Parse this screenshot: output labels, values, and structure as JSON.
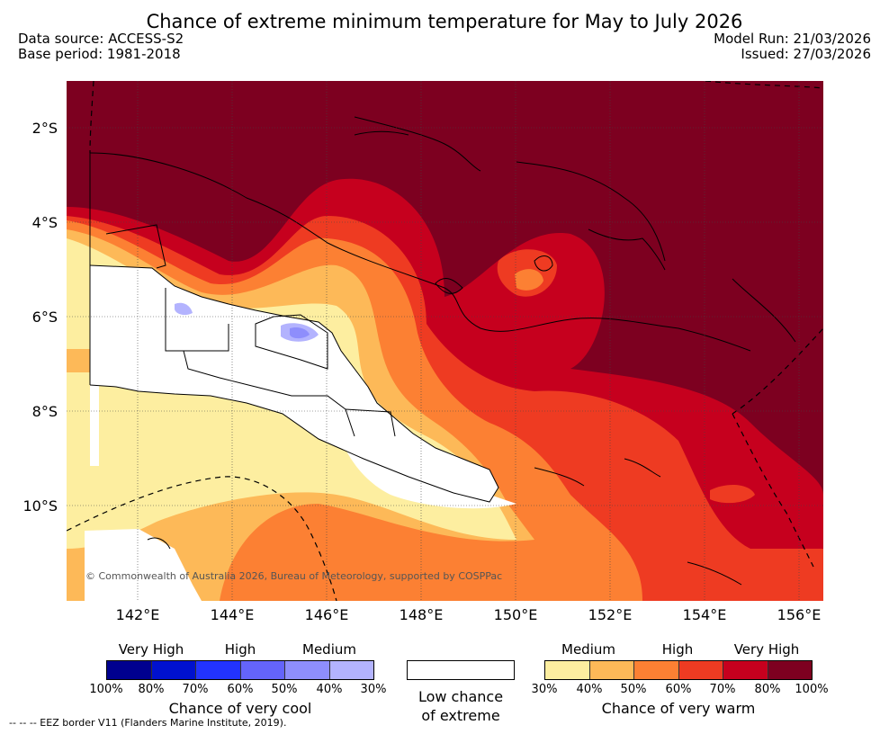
{
  "header": {
    "title": "Chance of extreme minimum temperature for May to July 2026",
    "data_source": "Data source: ACCESS-S2",
    "base_period": "Base period: 1981-2018",
    "model_run": "Model Run: 21/03/2026",
    "issued": "Issued: 27/03/2026"
  },
  "map": {
    "lat_labels": [
      "2°S",
      "4°S",
      "6°S",
      "8°S",
      "10°S"
    ],
    "lon_labels": [
      "142°E",
      "144°E",
      "146°E",
      "148°E",
      "150°E",
      "152°E",
      "154°E",
      "156°E"
    ],
    "copyright": "© Commonwealth of Australia 2026, Bureau of Meteorology, supported by COSPPac",
    "colors": {
      "land_none": "#ffffff",
      "warm_30": "#fdeea0",
      "warm_40": "#fdb958",
      "warm_50": "#fc8033",
      "warm_60": "#ee3b22",
      "warm_70": "#c6001e",
      "warm_80": "#7d0020",
      "cool_30": "#b3b3fe",
      "cool_40": "#8e8efc"
    }
  },
  "legend": {
    "cool": {
      "labels": [
        "Very High",
        "High",
        "Medium"
      ],
      "ticks": [
        "100%",
        "80%",
        "70%",
        "60%",
        "50%",
        "40%",
        "30%"
      ],
      "colors": [
        "#00008f",
        "#0011cf",
        "#2233ff",
        "#6464fb",
        "#8e8efc",
        "#b3b3fe"
      ],
      "caption": "Chance of very cool"
    },
    "none": {
      "caption_line1": "Low chance",
      "caption_line2": "of extreme"
    },
    "warm": {
      "labels": [
        "Medium",
        "High",
        "Very High"
      ],
      "ticks": [
        "30%",
        "40%",
        "50%",
        "60%",
        "70%",
        "80%",
        "100%"
      ],
      "colors": [
        "#fdeea0",
        "#fdb958",
        "#fc8033",
        "#ee3b22",
        "#c6001e",
        "#7d0020"
      ],
      "caption": "Chance of very warm"
    }
  },
  "footnote": "--  --  -- EEZ border V11 (Flanders Marine Institute, 2019)."
}
